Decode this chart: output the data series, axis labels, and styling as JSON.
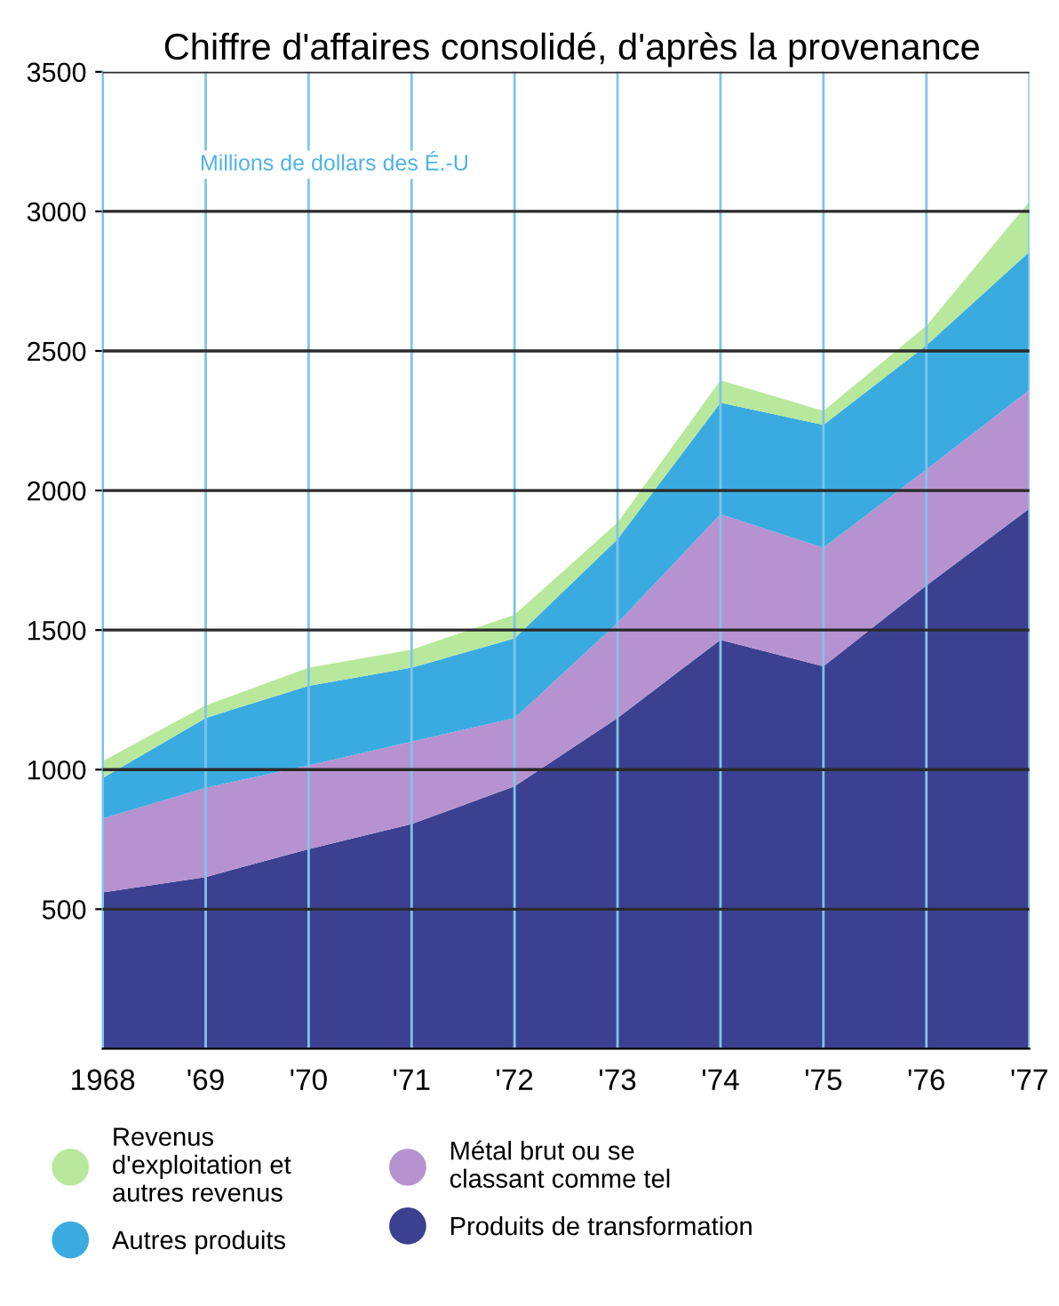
{
  "chart_data": {
    "type": "area",
    "stacked": true,
    "title": "Chiffre d'affaires consolidé, d'après la provenance",
    "categories": [
      "1968",
      "'69",
      "'70",
      "'71",
      "'72",
      "'73",
      "'74",
      "'75",
      "'76",
      "'77"
    ],
    "series": [
      {
        "name": "Produits de transformation",
        "color": "#3b4190",
        "values": [
          560,
          615,
          715,
          805,
          940,
          1185,
          1465,
          1370,
          1660,
          1935
        ]
      },
      {
        "name": "Métal brut ou se\nclassant comme tel",
        "color": "#b792d0",
        "values": [
          265,
          320,
          300,
          295,
          245,
          340,
          450,
          425,
          415,
          425
        ]
      },
      {
        "name": "Autres produits",
        "color": "#3aabe0",
        "values": [
          145,
          250,
          285,
          265,
          285,
          300,
          400,
          440,
          445,
          495
        ]
      },
      {
        "name": "Revenus\nd'exploitation et\nautres revenus",
        "color": "#b8e89c",
        "values": [
          60,
          45,
          65,
          65,
          85,
          60,
          80,
          50,
          70,
          180
        ]
      }
    ],
    "annotations": [
      "Millions de dollars des É.-U"
    ],
    "ylim": [
      0,
      3500
    ],
    "yticks": [
      500,
      1000,
      1500,
      2000,
      2500,
      3000,
      3500
    ],
    "grid": true,
    "legend": "bottom"
  }
}
